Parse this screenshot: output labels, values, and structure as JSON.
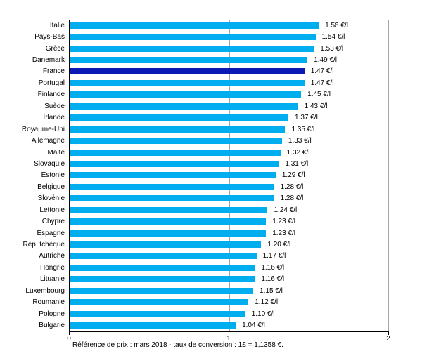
{
  "chart_data": {
    "type": "bar",
    "orientation": "horizontal",
    "title": "",
    "xlabel": "",
    "ylabel": "",
    "xlim": [
      0,
      2
    ],
    "x_ticks": [
      "0",
      "1",
      "2"
    ],
    "grid": "vertical lines at 1 and 2",
    "bar_color": "#00AEEF",
    "highlight_color": "#0B1AB4",
    "highlight_category": "France",
    "unit": "€/l",
    "categories": [
      "Italie",
      "Pays-Bas",
      "Grèce",
      "Danemark",
      "France",
      "Portugal",
      "Finlande",
      "Suède",
      "Irlande",
      "Royaume-Uni",
      "Allemagne",
      "Malte",
      "Slovaquie",
      "Estonie",
      "Belgique",
      "Slovénie",
      "Lettonie",
      "Chypre",
      "Espagne",
      "Rép. tchèque",
      "Autriche",
      "Hongrie",
      "Lituanie",
      "Luxembourg",
      "Roumanie",
      "Pologne",
      "Bulgarie"
    ],
    "values": [
      1.56,
      1.54,
      1.53,
      1.49,
      1.47,
      1.47,
      1.45,
      1.43,
      1.37,
      1.35,
      1.33,
      1.32,
      1.31,
      1.29,
      1.28,
      1.28,
      1.24,
      1.23,
      1.23,
      1.2,
      1.17,
      1.16,
      1.16,
      1.15,
      1.12,
      1.1,
      1.04
    ],
    "value_labels": [
      "1.56 €/l",
      "1.54 €/l",
      "1.53 €/l",
      "1.49 €/l",
      "1.47 €/l",
      "1.47 €/l",
      "1.45 €/l",
      "1.43 €/l",
      "1.37 €/l",
      "1.35 €/l",
      "1.33 €/l",
      "1.32 €/l",
      "1.31 €/l",
      "1.29 €/l",
      "1.28 €/l",
      "1.28 €/l",
      "1.24 €/l",
      "1.23 €/l",
      "1.23 €/l",
      "1.20 €/l",
      "1.17 €/l",
      "1.16 €/l",
      "1.16 €/l",
      "1.15 €/l",
      "1.12 €/l",
      "1.10 €/l",
      "1.04 €/l"
    ],
    "footnote": "Référence de prix : mars 2018 - taux de conversion : 1£ = 1,1358 €."
  }
}
